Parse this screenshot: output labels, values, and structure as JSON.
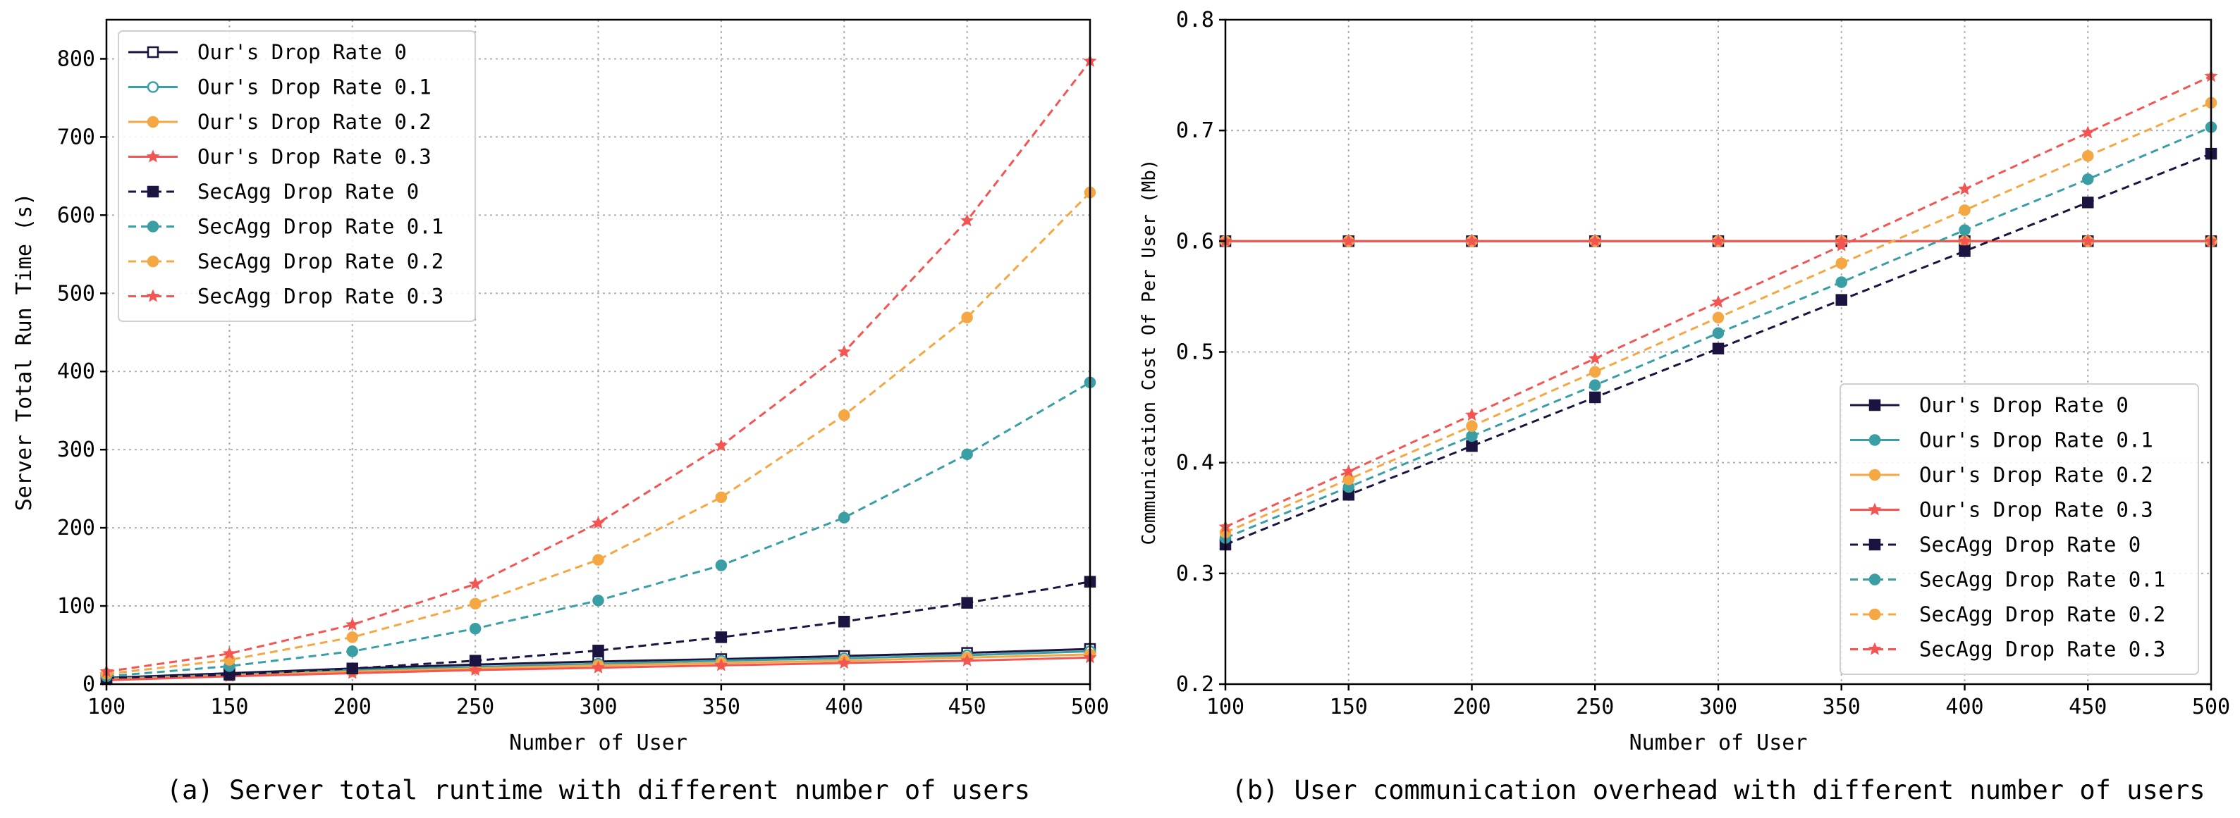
{
  "chart_data": [
    {
      "type": "line",
      "caption": "(a) Server total runtime with different number of users",
      "xlabel": "Number of User",
      "ylabel": "Server Total Run Time (s)",
      "xlim": [
        100,
        500
      ],
      "ylim": [
        0,
        850
      ],
      "xticks": [
        100,
        150,
        200,
        250,
        300,
        350,
        400,
        450,
        500
      ],
      "yticks": [
        0,
        100,
        200,
        300,
        400,
        500,
        600,
        700,
        800
      ],
      "grid": true,
      "legend_position": "upper-left",
      "x": [
        100,
        150,
        200,
        250,
        300,
        350,
        400,
        450,
        500
      ],
      "series": [
        {
          "name": "Our's Drop Rate 0",
          "values": [
            8,
            14,
            20,
            25,
            29,
            32,
            36,
            40,
            45
          ],
          "color": "#1b1440",
          "dash": false,
          "marker": "square-open"
        },
        {
          "name": "Our's Drop Rate 0.1",
          "values": [
            7,
            12,
            18,
            22,
            26,
            30,
            33,
            37,
            42
          ],
          "color": "#3a9ea5",
          "dash": false,
          "marker": "circle-open"
        },
        {
          "name": "Our's Drop Rate 0.2",
          "values": [
            6,
            11,
            16,
            20,
            24,
            27,
            30,
            34,
            38
          ],
          "color": "#f4a742",
          "dash": false,
          "marker": "circle"
        },
        {
          "name": "Our's Drop Rate 0.3",
          "values": [
            5,
            10,
            14,
            18,
            21,
            24,
            27,
            30,
            34
          ],
          "color": "#f25552",
          "dash": false,
          "marker": "star"
        },
        {
          "name": "SecAgg Drop Rate 0",
          "values": [
            8,
            12,
            20,
            30,
            43,
            60,
            80,
            104,
            131
          ],
          "color": "#1b1440",
          "dash": true,
          "marker": "square"
        },
        {
          "name": "SecAgg Drop Rate 0.1",
          "values": [
            10,
            23,
            42,
            71,
            107,
            152,
            213,
            294,
            386
          ],
          "color": "#3a9ea5",
          "dash": true,
          "marker": "circle"
        },
        {
          "name": "SecAgg Drop Rate 0.2",
          "values": [
            13,
            31,
            60,
            103,
            159,
            239,
            344,
            469,
            629
          ],
          "color": "#f4a742",
          "dash": true,
          "marker": "circle"
        },
        {
          "name": "SecAgg Drop Rate 0.3",
          "values": [
            16,
            39,
            76,
            128,
            206,
            305,
            425,
            593,
            797
          ],
          "color": "#f25552",
          "dash": true,
          "marker": "star"
        }
      ]
    },
    {
      "type": "line",
      "caption": "(b) User communication overhead with different number of users",
      "xlabel": "Number of User",
      "ylabel": "Communication Cost Of Per User (Mb)",
      "xlim": [
        100,
        500
      ],
      "ylim": [
        0.2,
        0.8
      ],
      "xticks": [
        100,
        150,
        200,
        250,
        300,
        350,
        400,
        450,
        500
      ],
      "yticks": [
        "0.2",
        "0.3",
        "0.4",
        "0.5",
        "0.6",
        "0.7",
        "0.8"
      ],
      "grid": true,
      "legend_position": "lower-right",
      "x": [
        100,
        150,
        200,
        250,
        300,
        350,
        400,
        450,
        500
      ],
      "series": [
        {
          "name": "Our's Drop Rate 0",
          "values": [
            0.6,
            0.6,
            0.6,
            0.6,
            0.6,
            0.6,
            0.6,
            0.6,
            0.6
          ],
          "color": "#1b1440",
          "dash": false,
          "marker": "square"
        },
        {
          "name": "Our's Drop Rate 0.1",
          "values": [
            0.6,
            0.6,
            0.6,
            0.6,
            0.6,
            0.6,
            0.6,
            0.6,
            0.6
          ],
          "color": "#3a9ea5",
          "dash": false,
          "marker": "circle"
        },
        {
          "name": "Our's Drop Rate 0.2",
          "values": [
            0.6,
            0.6,
            0.6,
            0.6,
            0.6,
            0.6,
            0.6,
            0.6,
            0.6
          ],
          "color": "#f4a742",
          "dash": false,
          "marker": "circle"
        },
        {
          "name": "Our's Drop Rate 0.3",
          "values": [
            0.6,
            0.6,
            0.6,
            0.6,
            0.6,
            0.6,
            0.6,
            0.6,
            0.6
          ],
          "color": "#f25552",
          "dash": false,
          "marker": "star"
        },
        {
          "name": "SecAgg Drop Rate 0",
          "values": [
            0.326,
            0.371,
            0.415,
            0.459,
            0.503,
            0.547,
            0.591,
            0.635,
            0.679
          ],
          "color": "#1b1440",
          "dash": true,
          "marker": "square"
        },
        {
          "name": "SecAgg Drop Rate 0.1",
          "values": [
            0.332,
            0.378,
            0.424,
            0.47,
            0.517,
            0.563,
            0.61,
            0.656,
            0.703
          ],
          "color": "#3a9ea5",
          "dash": true,
          "marker": "circle"
        },
        {
          "name": "SecAgg Drop Rate 0.2",
          "values": [
            0.337,
            0.385,
            0.433,
            0.482,
            0.531,
            0.58,
            0.628,
            0.677,
            0.725
          ],
          "color": "#f4a742",
          "dash": true,
          "marker": "circle"
        },
        {
          "name": "SecAgg Drop Rate 0.3",
          "values": [
            0.342,
            0.392,
            0.443,
            0.494,
            0.545,
            0.596,
            0.647,
            0.698,
            0.749
          ],
          "color": "#f25552",
          "dash": true,
          "marker": "star"
        }
      ]
    }
  ]
}
